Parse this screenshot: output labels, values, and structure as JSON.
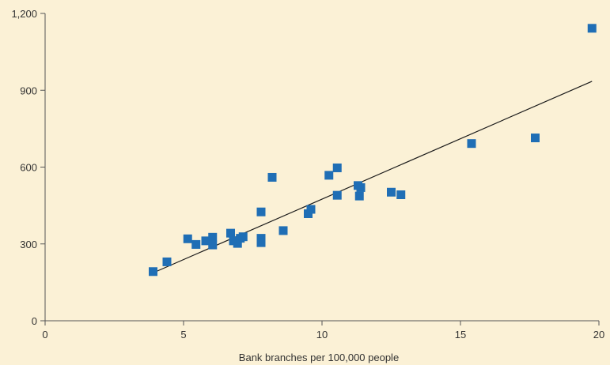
{
  "chart_data": {
    "type": "scatter",
    "title": "",
    "xlabel": "Bank branches per 100,000 people",
    "ylabel": "",
    "xlim": [
      0,
      20
    ],
    "ylim": [
      0,
      1200
    ],
    "x_ticks": [
      0,
      5,
      10,
      15,
      20
    ],
    "y_ticks": [
      0,
      300,
      600,
      900,
      1200
    ],
    "x_tick_labels": [
      "0",
      "5",
      "10",
      "15",
      "20"
    ],
    "y_tick_labels": [
      "0",
      "300",
      "600",
      "900",
      "1,200"
    ],
    "grid": false,
    "legend": "none",
    "marker_color": "#1f6eb5",
    "line_color": "#1a1a1a",
    "background_color": "#fbf1d6",
    "series": [
      {
        "points": [
          {
            "x": 3.9,
            "y": 192
          },
          {
            "x": 4.4,
            "y": 230
          },
          {
            "x": 5.15,
            "y": 320
          },
          {
            "x": 5.45,
            "y": 298
          },
          {
            "x": 5.8,
            "y": 312
          },
          {
            "x": 6.05,
            "y": 326
          },
          {
            "x": 6.05,
            "y": 296
          },
          {
            "x": 6.7,
            "y": 342
          },
          {
            "x": 6.8,
            "y": 312
          },
          {
            "x": 6.95,
            "y": 302
          },
          {
            "x": 7.05,
            "y": 322
          },
          {
            "x": 7.15,
            "y": 328
          },
          {
            "x": 7.8,
            "y": 425
          },
          {
            "x": 7.8,
            "y": 322
          },
          {
            "x": 7.8,
            "y": 305
          },
          {
            "x": 8.2,
            "y": 560
          },
          {
            "x": 8.6,
            "y": 352
          },
          {
            "x": 9.5,
            "y": 418
          },
          {
            "x": 9.6,
            "y": 435
          },
          {
            "x": 10.25,
            "y": 568
          },
          {
            "x": 10.55,
            "y": 597
          },
          {
            "x": 10.55,
            "y": 490
          },
          {
            "x": 11.3,
            "y": 528
          },
          {
            "x": 11.4,
            "y": 520
          },
          {
            "x": 11.35,
            "y": 487
          },
          {
            "x": 12.5,
            "y": 502
          },
          {
            "x": 12.85,
            "y": 492
          },
          {
            "x": 15.4,
            "y": 692
          },
          {
            "x": 17.7,
            "y": 714
          },
          {
            "x": 19.75,
            "y": 1142
          }
        ]
      }
    ],
    "trendline": {
      "x": [
        3.9,
        19.75
      ],
      "y": [
        187,
        935
      ]
    }
  }
}
